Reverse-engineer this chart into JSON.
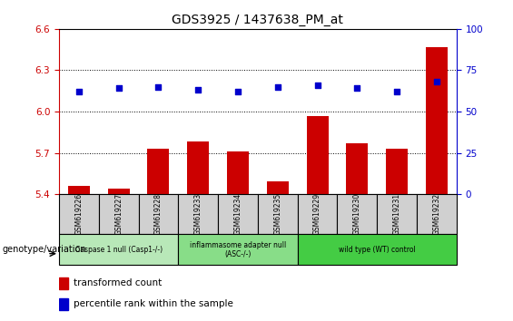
{
  "title": "GDS3925 / 1437638_PM_at",
  "samples": [
    "GSM619226",
    "GSM619227",
    "GSM619228",
    "GSM619233",
    "GSM619234",
    "GSM619235",
    "GSM619229",
    "GSM619230",
    "GSM619231",
    "GSM619232"
  ],
  "bar_values": [
    5.46,
    5.44,
    5.73,
    5.78,
    5.71,
    5.49,
    5.97,
    5.77,
    5.73,
    6.47
  ],
  "dot_values": [
    62,
    64,
    65,
    63,
    62,
    65,
    66,
    64,
    62,
    68
  ],
  "ylim": [
    5.4,
    6.6
  ],
  "y2lim": [
    0,
    100
  ],
  "yticks": [
    5.4,
    5.7,
    6.0,
    6.3,
    6.6
  ],
  "y2ticks": [
    0,
    25,
    50,
    75,
    100
  ],
  "bar_color": "#cc0000",
  "dot_color": "#0000cc",
  "groups": [
    {
      "label": "Caspase 1 null (Casp1-/-)",
      "start": 0,
      "end": 3,
      "color": "#b8e8b8"
    },
    {
      "label": "inflammasome adapter null\n(ASC-/-)",
      "start": 3,
      "end": 6,
      "color": "#88dd88"
    },
    {
      "label": "wild type (WT) control",
      "start": 6,
      "end": 10,
      "color": "#44cc44"
    }
  ],
  "legend_bar_label": "transformed count",
  "legend_dot_label": "percentile rank within the sample",
  "xlabel_left": "genotype/variation",
  "tick_label_color_left": "#cc0000",
  "tick_label_color_right": "#0000cc",
  "sample_box_color": "#d0d0d0",
  "bar_base": 5.4
}
